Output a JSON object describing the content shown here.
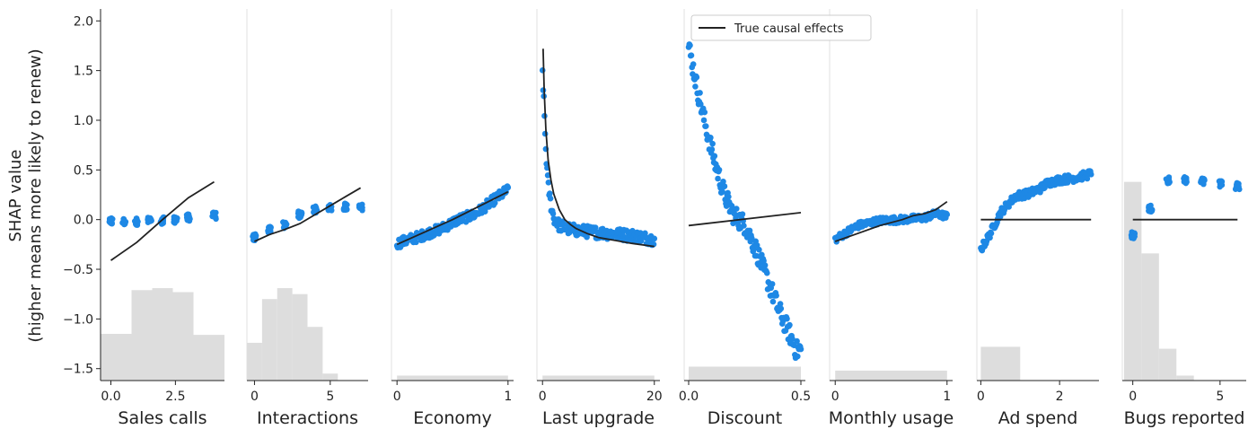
{
  "chart_data": {
    "type": "scatter",
    "ylabel_lines": [
      "SHAP value",
      "(higher means more likely to renew)"
    ],
    "ylim": [
      -1.62,
      2.12
    ],
    "yticks": [
      {
        "v": 2.0,
        "label": "2.0"
      },
      {
        "v": 1.5,
        "label": "1.5"
      },
      {
        "v": 1.0,
        "label": "1.0"
      },
      {
        "v": 0.5,
        "label": "0.5"
      },
      {
        "v": 0.0,
        "label": "0.0"
      },
      {
        "v": -0.5,
        "label": "−0.5"
      },
      {
        "v": -1.0,
        "label": "−1.0"
      },
      {
        "v": -1.5,
        "label": "−1.5"
      }
    ],
    "legend": {
      "label": "True causal effects",
      "placement": "top-center"
    },
    "colors": {
      "shap": "#1e88e5",
      "truth": "#222222",
      "hist": "#dddddd",
      "axis": "#222222",
      "separator": "#e2e2e2"
    },
    "panels": [
      {
        "feature": "Sales calls",
        "xlim": [
          -0.4,
          4.4
        ],
        "xticks": [
          {
            "v": 0,
            "label": "0.0"
          },
          {
            "v": 2.5,
            "label": "2.5"
          }
        ],
        "hist": {
          "edges": [
            -0.4,
            0.8,
            1.6,
            2.4,
            3.2,
            4.4
          ],
          "heights": [
            -1.15,
            -0.71,
            -0.69,
            -0.73,
            -1.16
          ]
        },
        "truth": [
          [
            0,
            -0.41
          ],
          [
            1,
            -0.23
          ],
          [
            2,
            0.0
          ],
          [
            3,
            0.22
          ],
          [
            4,
            0.38
          ]
        ],
        "shap": {
          "kind": "clusters",
          "clusters": [
            [
              0,
              -0.02
            ],
            [
              0.5,
              -0.02
            ],
            [
              1.0,
              -0.02
            ],
            [
              1.5,
              -0.01
            ],
            [
              2.0,
              -0.01
            ],
            [
              2.5,
              0.0
            ],
            [
              3.0,
              0.02
            ],
            [
              4.0,
              0.04
            ]
          ]
        }
      },
      {
        "feature": "Interactions",
        "xlim": [
          -0.5,
          7.5
        ],
        "xticks": [
          {
            "v": 0,
            "label": "0"
          },
          {
            "v": 5,
            "label": "5"
          }
        ],
        "hist": {
          "edges": [
            -0.5,
            0.5,
            1.5,
            2.5,
            3.5,
            4.5,
            5.5
          ],
          "heights": [
            -1.24,
            -0.8,
            -0.69,
            -0.75,
            -1.08,
            -1.55
          ]
        },
        "truth": [
          [
            0,
            -0.22
          ],
          [
            1,
            -0.15
          ],
          [
            2,
            -0.1
          ],
          [
            3,
            -0.04
          ],
          [
            4,
            0.05
          ],
          [
            5,
            0.14
          ],
          [
            6,
            0.23
          ],
          [
            7,
            0.32
          ]
        ],
        "shap": {
          "kind": "clusters",
          "clusters": [
            [
              0,
              -0.18
            ],
            [
              1,
              -0.1
            ],
            [
              2,
              -0.06
            ],
            [
              3,
              0.05
            ],
            [
              4,
              0.1
            ],
            [
              5,
              0.12
            ],
            [
              6,
              0.13
            ],
            [
              7,
              0.12
            ]
          ]
        }
      },
      {
        "feature": "Economy",
        "xlim": [
          -0.05,
          1.05
        ],
        "xticks": [
          {
            "v": 0,
            "label": "0"
          },
          {
            "v": 1,
            "label": "1"
          }
        ],
        "hist": {
          "edges": [
            0,
            1
          ],
          "heights": [
            -1.57
          ]
        },
        "truth": [
          [
            0,
            -0.25
          ],
          [
            0.5,
            0.0
          ],
          [
            1,
            0.28
          ]
        ],
        "shap": {
          "kind": "band",
          "points": [
            [
              0,
              -0.24
            ],
            [
              0.2,
              -0.17
            ],
            [
              0.4,
              -0.09
            ],
            [
              0.55,
              0.0
            ],
            [
              0.7,
              0.05
            ],
            [
              0.85,
              0.18
            ],
            [
              1.0,
              0.3
            ]
          ],
          "spread": 0.05
        }
      },
      {
        "feature": "Last upgrade",
        "xlim": [
          -1,
          21
        ],
        "xticks": [
          {
            "v": 0,
            "label": "0"
          },
          {
            "v": 20,
            "label": "20"
          }
        ],
        "hist": {
          "edges": [
            0,
            20
          ],
          "heights": [
            -1.57
          ]
        },
        "truth": [
          [
            0.1,
            1.72
          ],
          [
            0.3,
            1.3
          ],
          [
            0.6,
            0.9
          ],
          [
            1,
            0.6
          ],
          [
            1.5,
            0.4
          ],
          [
            2,
            0.26
          ],
          [
            3,
            0.1
          ],
          [
            4,
            0.0
          ],
          [
            5,
            -0.05
          ],
          [
            6,
            -0.09
          ],
          [
            8,
            -0.14
          ],
          [
            10,
            -0.18
          ],
          [
            13,
            -0.21
          ],
          [
            16,
            -0.24
          ],
          [
            20,
            -0.27
          ]
        ],
        "shap": {
          "kind": "band",
          "points": [
            [
              0,
              1.5
            ],
            [
              0.3,
              1.1
            ],
            [
              0.6,
              0.7
            ],
            [
              1,
              0.35
            ],
            [
              1.5,
              0.15
            ],
            [
              2,
              0.02
            ],
            [
              3,
              -0.06
            ],
            [
              5,
              -0.1
            ],
            [
              8,
              -0.12
            ],
            [
              12,
              -0.14
            ],
            [
              16,
              -0.16
            ],
            [
              20,
              -0.2
            ]
          ],
          "spread": 0.06
        }
      },
      {
        "feature": "Discount",
        "xlim": [
          -0.02,
          0.52
        ],
        "xticks": [
          {
            "v": 0,
            "label": "0.0"
          },
          {
            "v": 0.5,
            "label": "0.5"
          }
        ],
        "hist": {
          "edges": [
            0,
            0.5
          ],
          "heights": [
            -1.48
          ]
        },
        "truth": [
          [
            0,
            -0.06
          ],
          [
            0.5,
            0.07
          ]
        ],
        "shap": {
          "kind": "band",
          "points": [
            [
              0,
              1.75
            ],
            [
              0.04,
              1.3
            ],
            [
              0.08,
              0.9
            ],
            [
              0.12,
              0.55
            ],
            [
              0.16,
              0.25
            ],
            [
              0.2,
              0.05
            ],
            [
              0.25,
              -0.05
            ],
            [
              0.3,
              -0.3
            ],
            [
              0.35,
              -0.6
            ],
            [
              0.4,
              -0.9
            ],
            [
              0.45,
              -1.15
            ],
            [
              0.48,
              -1.32
            ],
            [
              0.5,
              -1.3
            ]
          ],
          "spread": 0.1
        }
      },
      {
        "feature": "Monthly usage",
        "xlim": [
          -0.05,
          1.05
        ],
        "xticks": [
          {
            "v": 0,
            "label": "0"
          },
          {
            "v": 1,
            "label": "1"
          }
        ],
        "hist": {
          "edges": [
            0,
            1
          ],
          "heights": [
            -1.52
          ]
        },
        "truth": [
          [
            0,
            -0.22
          ],
          [
            0.2,
            -0.14
          ],
          [
            0.4,
            -0.06
          ],
          [
            0.6,
            0.0
          ],
          [
            0.7,
            0.04
          ],
          [
            0.8,
            0.06
          ],
          [
            0.9,
            0.1
          ],
          [
            1.0,
            0.18
          ]
        ],
        "shap": {
          "kind": "band",
          "points": [
            [
              0,
              -0.2
            ],
            [
              0.2,
              -0.06
            ],
            [
              0.4,
              -0.01
            ],
            [
              0.6,
              0.0
            ],
            [
              0.8,
              0.02
            ],
            [
              0.9,
              0.06
            ],
            [
              1.0,
              0.03
            ]
          ],
          "spread": 0.035
        }
      },
      {
        "feature": "Ad spend",
        "xlim": [
          -0.1,
          3.0
        ],
        "xticks": [
          {
            "v": 0,
            "label": "0"
          },
          {
            "v": 2,
            "label": "2"
          }
        ],
        "hist": {
          "edges": [
            0,
            1
          ],
          "heights": [
            -1.28
          ]
        },
        "truth": [
          [
            0,
            0.0
          ],
          [
            2.8,
            0.0
          ]
        ],
        "shap": {
          "kind": "band",
          "points": [
            [
              0,
              -0.3
            ],
            [
              0.2,
              -0.17
            ],
            [
              0.35,
              -0.05
            ],
            [
              0.5,
              0.07
            ],
            [
              0.7,
              0.16
            ],
            [
              0.9,
              0.24
            ],
            [
              1.2,
              0.26
            ],
            [
              1.5,
              0.31
            ],
            [
              1.7,
              0.37
            ],
            [
              2.0,
              0.4
            ],
            [
              2.4,
              0.42
            ],
            [
              2.8,
              0.46
            ]
          ],
          "spread": 0.04
        }
      },
      {
        "feature": "Bugs reported",
        "xlim": [
          -0.6,
          6.5
        ],
        "xticks": [
          {
            "v": 0,
            "label": "0"
          },
          {
            "v": 5,
            "label": "5"
          }
        ],
        "hist": {
          "edges": [
            -0.5,
            0.5,
            1.5,
            2.5,
            3.5
          ],
          "heights": [
            0.38,
            -0.34,
            -1.3,
            -1.57
          ]
        },
        "truth": [
          [
            0,
            0.0
          ],
          [
            6,
            0.0
          ]
        ],
        "shap": {
          "kind": "clusters",
          "clusters": [
            [
              0,
              -0.16
            ],
            [
              1,
              0.11
            ],
            [
              2,
              0.4
            ],
            [
              3,
              0.4
            ],
            [
              4,
              0.39
            ],
            [
              5,
              0.36
            ],
            [
              6,
              0.34
            ]
          ]
        }
      }
    ]
  }
}
